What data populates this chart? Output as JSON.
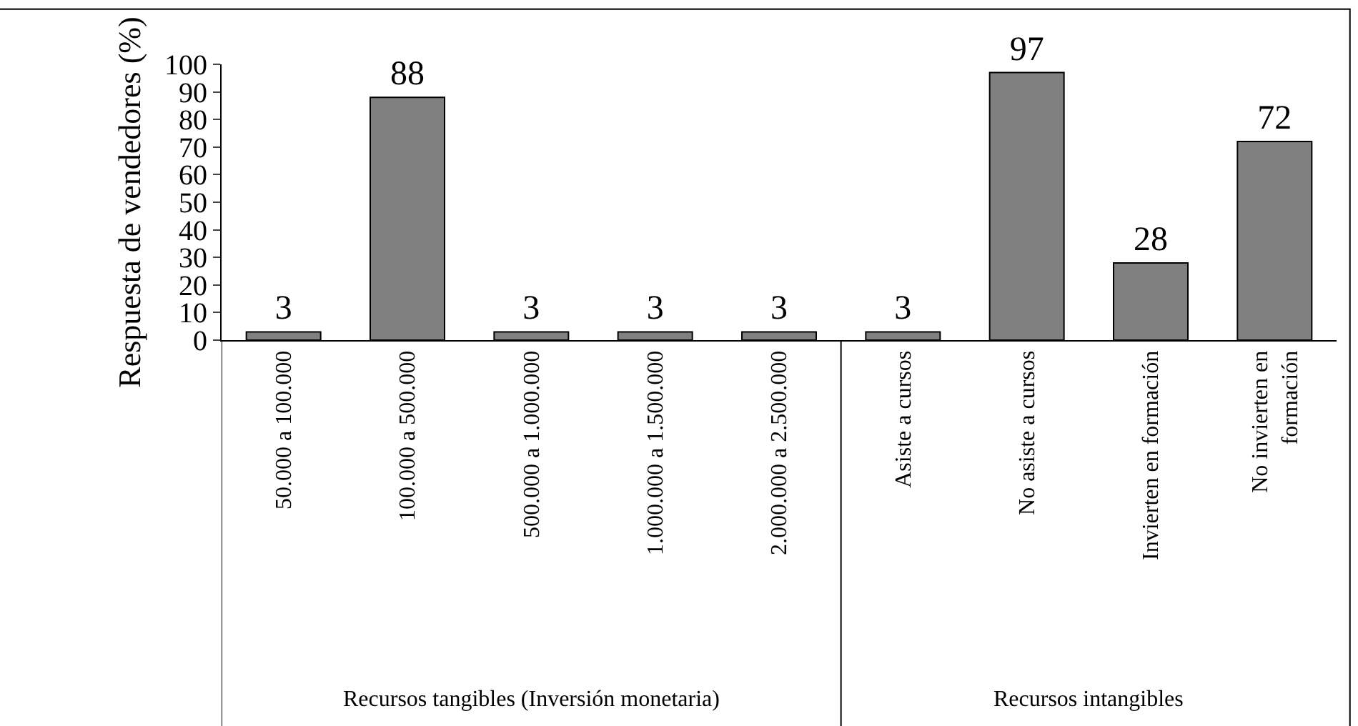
{
  "chart_data": {
    "type": "bar",
    "ylabel": "Respuesta de vendedores (%)",
    "categories": [
      "50.000 a 100.000",
      "100.000 a 500.000",
      "500.000 a 1.000.000",
      "1.000.000 a 1.500.000",
      "2.000.000 a 2.500.000",
      "Asiste a cursos",
      "No asiste a cursos",
      "Invierten en formación",
      "No invierten en formación"
    ],
    "values": [
      3,
      88,
      3,
      3,
      3,
      3,
      97,
      28,
      72
    ],
    "color": "#808080",
    "data_labels": true,
    "ylim": [
      0,
      100
    ],
    "yticks": [
      0,
      10,
      20,
      30,
      40,
      50,
      60,
      70,
      80,
      90,
      100
    ],
    "annotations": [
      "Recursos tangibles (Inversión monetaria)",
      "Recursos intangibles"
    ]
  }
}
